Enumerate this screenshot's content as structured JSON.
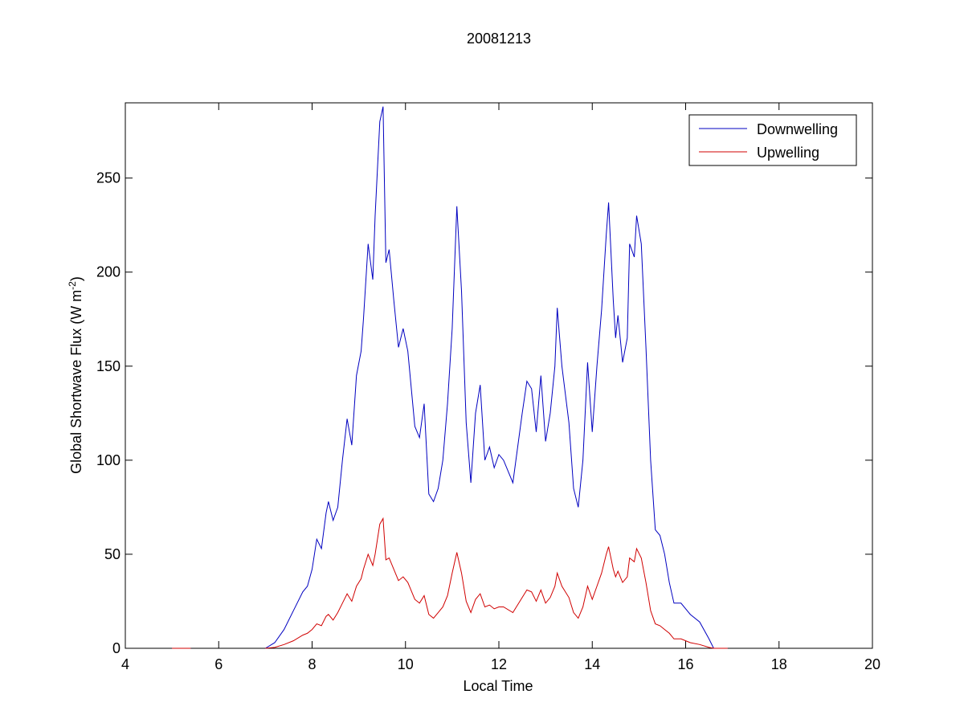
{
  "chart_data": {
    "type": "line",
    "title": "20081213",
    "xlabel": "Local Time",
    "ylabel": {
      "text": "Global Shortwave Flux (W m",
      "sup": "-2",
      "tail": ")"
    },
    "xlim": [
      4,
      20
    ],
    "xticks": [
      4,
      6,
      8,
      10,
      12,
      14,
      16,
      18,
      20
    ],
    "ylim": [
      0,
      290
    ],
    "yticks": [
      0,
      50,
      100,
      150,
      200,
      250
    ],
    "legend": "top-right",
    "x": [
      5.0,
      5.4,
      6.0,
      7.0,
      7.2,
      7.4,
      7.6,
      7.8,
      7.9,
      8.0,
      8.1,
      8.2,
      8.3,
      8.35,
      8.45,
      8.55,
      8.65,
      8.75,
      8.85,
      8.95,
      9.05,
      9.1,
      9.2,
      9.3,
      9.35,
      9.45,
      9.52,
      9.58,
      9.65,
      9.75,
      9.85,
      9.95,
      10.05,
      10.2,
      10.3,
      10.4,
      10.5,
      10.6,
      10.7,
      10.8,
      10.9,
      11.0,
      11.1,
      11.2,
      11.3,
      11.4,
      11.5,
      11.6,
      11.7,
      11.8,
      11.9,
      12.0,
      12.1,
      12.3,
      12.5,
      12.6,
      12.7,
      12.8,
      12.9,
      13.0,
      13.1,
      13.2,
      13.25,
      13.35,
      13.5,
      13.6,
      13.7,
      13.8,
      13.9,
      14.0,
      14.1,
      14.2,
      14.3,
      14.35,
      14.45,
      14.5,
      14.55,
      14.65,
      14.75,
      14.8,
      14.9,
      14.95,
      15.05,
      15.15,
      15.25,
      15.35,
      15.45,
      15.55,
      15.65,
      15.75,
      15.9,
      16.1,
      16.3,
      16.5,
      16.6,
      16.9
    ],
    "series": [
      {
        "name": "Downwelling",
        "color": "#0000c0",
        "values": [
          0,
          0,
          null,
          0,
          3,
          10,
          20,
          30,
          33,
          42,
          58,
          53,
          72,
          78,
          68,
          75,
          100,
          122,
          108,
          145,
          158,
          175,
          215,
          196,
          230,
          280,
          288,
          205,
          212,
          185,
          160,
          170,
          158,
          118,
          112,
          130,
          82,
          78,
          85,
          100,
          130,
          170,
          235,
          190,
          120,
          88,
          125,
          140,
          100,
          107,
          96,
          103,
          100,
          88,
          125,
          142,
          138,
          115,
          145,
          110,
          125,
          150,
          181,
          150,
          120,
          85,
          75,
          100,
          152,
          115,
          150,
          180,
          220,
          237,
          185,
          165,
          177,
          152,
          165,
          215,
          208,
          230,
          215,
          160,
          100,
          63,
          60,
          50,
          35,
          24,
          24,
          18,
          14,
          5,
          0,
          0
        ]
      },
      {
        "name": "Upwelling",
        "color": "#d00000",
        "values": [
          0,
          0,
          null,
          0,
          0.5,
          2,
          4,
          7,
          8,
          10,
          13,
          12,
          17,
          18,
          15,
          19,
          24,
          29,
          25,
          33,
          37,
          42,
          50,
          44,
          50,
          66,
          69,
          47,
          48,
          42,
          36,
          38,
          35,
          26,
          24,
          28,
          18,
          16,
          19,
          22,
          28,
          40,
          51,
          40,
          25,
          19,
          26,
          29,
          22,
          23,
          21,
          22,
          22,
          19,
          27,
          31,
          30,
          25,
          31,
          24,
          27,
          33,
          40,
          33,
          27,
          19,
          16,
          22,
          33,
          26,
          33,
          40,
          50,
          54,
          42,
          38,
          41,
          35,
          38,
          48,
          46,
          53,
          48,
          35,
          20,
          13,
          12,
          10,
          8,
          5,
          5,
          3,
          2,
          0.5,
          0,
          0
        ]
      }
    ]
  }
}
